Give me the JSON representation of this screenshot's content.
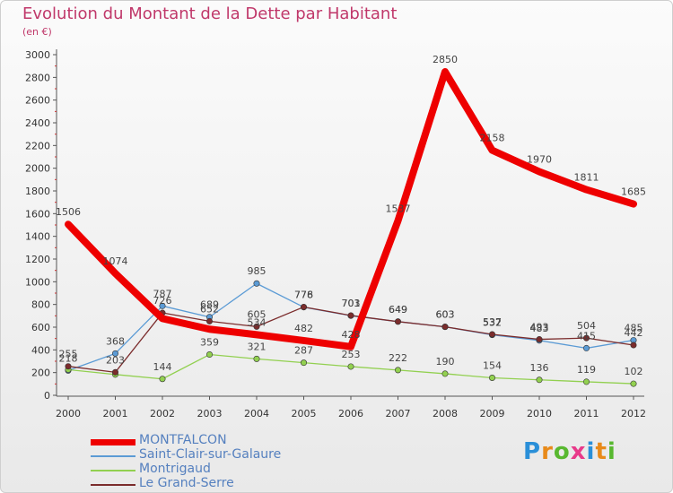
{
  "header": {
    "title": "Evolution du Montant de la Dette par Habitant",
    "subtitle": "(en €)"
  },
  "logo": {
    "text": "Proxiti",
    "letter_colors": [
      "#2a8fd8",
      "#e88a1a",
      "#58b830",
      "#e83a8a",
      "#2a8fd8",
      "#e88a1a",
      "#58b830"
    ]
  },
  "colors": {
    "title": "#c0386a",
    "legend_text": "#5580bf",
    "axis": "#555555",
    "tick_text": "#333333",
    "label_text": "#444444"
  },
  "chart_data": {
    "type": "line",
    "x": [
      "2000",
      "2001",
      "2002",
      "2003",
      "2004",
      "2005",
      "2006",
      "2007",
      "2008",
      "2009",
      "2010",
      "2011",
      "2012"
    ],
    "ylim": [
      0,
      3000
    ],
    "yticks": [
      0,
      200,
      400,
      600,
      800,
      1000,
      1200,
      1400,
      1600,
      1800,
      2000,
      2200,
      2400,
      2600,
      2800,
      3000
    ],
    "grid": false,
    "legend_position": "bottom-left",
    "series": [
      {
        "name": "MONTFALCON",
        "color": "#ee0000",
        "values": [
          1506,
          1074,
          676,
          582,
          534,
          482,
          428,
          1537,
          2850,
          2158,
          1970,
          1811,
          1685
        ],
        "labels": [
          "1506",
          "1074",
          "",
          "",
          "534",
          "482",
          "428",
          "1537",
          "2850",
          "2158",
          "1970",
          "1811",
          "1685"
        ]
      },
      {
        "name": "Saint-Clair-sur-Galaure",
        "color": "#5b9bd5",
        "values": [
          218,
          368,
          787,
          689,
          985,
          776,
          701,
          649,
          603,
          532,
          483,
          415,
          485
        ],
        "labels": [
          "218",
          "368",
          "787",
          "689",
          "985",
          "776",
          "701",
          "649",
          "603",
          "532",
          "483",
          "415",
          "485"
        ]
      },
      {
        "name": "Montrigaud",
        "color": "#92d050",
        "values": [
          226,
          183,
          144,
          359,
          321,
          287,
          253,
          222,
          190,
          154,
          136,
          119,
          102
        ],
        "labels": [
          "",
          "",
          "144",
          "359",
          "321",
          "287",
          "253",
          "222",
          "190",
          "154",
          "136",
          "119",
          "102"
        ]
      },
      {
        "name": "Le Grand-Serre",
        "color": "#7b2c2c",
        "values": [
          255,
          203,
          726,
          652,
          605,
          778,
          703,
          649,
          603,
          537,
          493,
          504,
          442
        ],
        "labels": [
          "255",
          "203",
          "726",
          "652",
          "605",
          "778",
          "703",
          "649",
          "603",
          "537",
          "493",
          "504",
          "442"
        ]
      }
    ]
  }
}
